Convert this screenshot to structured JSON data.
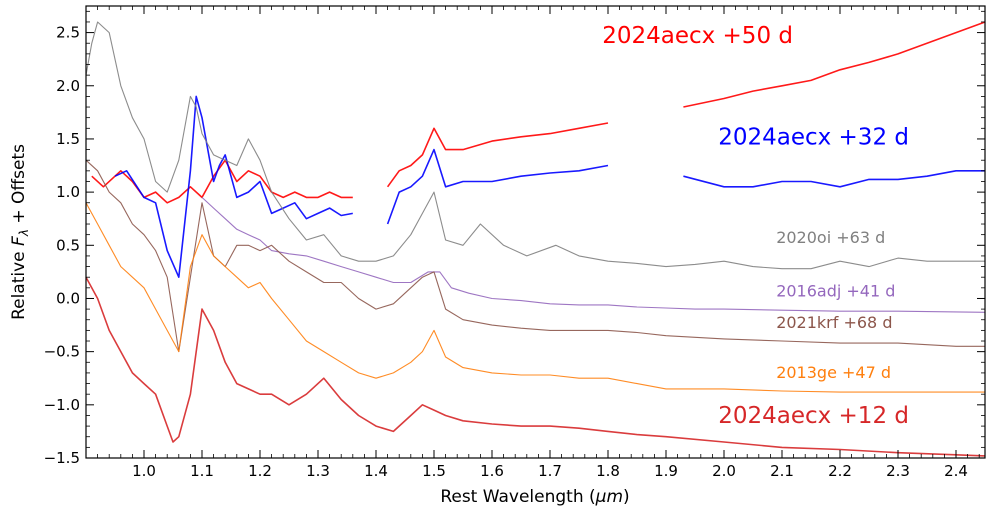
{
  "chart_data": {
    "type": "line",
    "xlabel_prefix": "Rest Wavelength (",
    "xlabel_unit": "μm",
    "xlabel_suffix": ")",
    "ylabel_prefix": "Relative ",
    "ylabel_symbol": "F",
    "ylabel_sub": "λ",
    "ylabel_suffix": " + Offsets",
    "xlim": [
      0.9,
      2.45
    ],
    "ylim": [
      -1.5,
      2.75
    ],
    "x_ticks": [
      "1.0",
      "1.1",
      "1.2",
      "1.3",
      "1.4",
      "1.5",
      "1.6",
      "1.7",
      "1.8",
      "1.9",
      "2.0",
      "2.1",
      "2.2",
      "2.3",
      "2.4"
    ],
    "y_ticks": [
      "−1.5",
      "−1.0",
      "−0.5",
      "0.0",
      "0.5",
      "1.0",
      "1.5",
      "2.0",
      "2.5"
    ],
    "grid": false,
    "series": [
      {
        "name": "2024aecx +50 d",
        "color": "#ff0000",
        "label_size": "large",
        "x": [
          0.91,
          0.93,
          0.96,
          0.98,
          1.0,
          1.02,
          1.04,
          1.06,
          1.08,
          1.1,
          1.12,
          1.14,
          1.16,
          1.18,
          1.2,
          1.22,
          1.24,
          1.26,
          1.28,
          1.3,
          1.32,
          1.34,
          1.36,
          null,
          1.42,
          1.44,
          1.46,
          1.48,
          1.5,
          1.52,
          1.55,
          1.6,
          1.65,
          1.7,
          1.75,
          1.8,
          null,
          1.93,
          2.0,
          2.05,
          2.1,
          2.15,
          2.2,
          2.25,
          2.3,
          2.35,
          2.4,
          2.45
        ],
        "y": [
          1.15,
          1.05,
          1.2,
          1.1,
          0.95,
          1.0,
          0.9,
          0.95,
          1.05,
          0.95,
          1.15,
          1.3,
          1.1,
          1.2,
          1.15,
          1.0,
          0.95,
          1.0,
          0.95,
          0.95,
          1.0,
          0.95,
          0.95,
          null,
          1.05,
          1.2,
          1.25,
          1.35,
          1.6,
          1.4,
          1.4,
          1.48,
          1.52,
          1.55,
          1.6,
          1.65,
          null,
          1.8,
          1.88,
          1.95,
          2.0,
          2.05,
          2.15,
          2.22,
          2.3,
          2.4,
          2.5,
          2.6
        ]
      },
      {
        "name": "2024aecx +32 d",
        "color": "#0000ff",
        "label_size": "large",
        "x": [
          0.95,
          0.97,
          1.0,
          1.02,
          1.04,
          1.06,
          1.08,
          1.09,
          1.1,
          1.12,
          1.13,
          1.14,
          1.16,
          1.18,
          1.2,
          1.22,
          1.24,
          1.26,
          1.28,
          1.3,
          1.32,
          1.34,
          1.36,
          null,
          1.42,
          1.44,
          1.46,
          1.48,
          1.5,
          1.52,
          1.55,
          1.6,
          1.65,
          1.7,
          1.75,
          1.8,
          null,
          1.93,
          2.0,
          2.05,
          2.1,
          2.15,
          2.2,
          2.25,
          2.3,
          2.35,
          2.4,
          2.45
        ],
        "y": [
          1.15,
          1.2,
          0.95,
          0.9,
          0.45,
          0.2,
          1.2,
          1.9,
          1.7,
          1.1,
          1.25,
          1.35,
          0.95,
          1.0,
          1.1,
          0.8,
          0.85,
          0.9,
          0.75,
          0.8,
          0.85,
          0.78,
          0.8,
          null,
          0.7,
          1.0,
          1.05,
          1.15,
          1.4,
          1.05,
          1.1,
          1.1,
          1.15,
          1.18,
          1.2,
          1.25,
          null,
          1.15,
          1.05,
          1.05,
          1.1,
          1.1,
          1.05,
          1.12,
          1.12,
          1.15,
          1.2,
          1.2
        ]
      },
      {
        "name": "2020oi +63 d",
        "color": "#808080",
        "label_size": "small",
        "x": [
          0.9,
          0.91,
          0.92,
          0.94,
          0.96,
          0.98,
          1.0,
          1.02,
          1.04,
          1.06,
          1.08,
          1.09,
          1.1,
          1.12,
          1.14,
          1.16,
          1.18,
          1.2,
          1.22,
          1.25,
          1.28,
          1.31,
          1.34,
          1.37,
          1.4,
          1.43,
          1.46,
          1.48,
          1.5,
          1.52,
          1.55,
          1.58,
          1.62,
          1.66,
          1.71,
          1.75,
          1.8,
          1.85,
          1.9,
          1.95,
          2.0,
          2.05,
          2.1,
          2.15,
          2.2,
          2.25,
          2.3,
          2.35,
          2.4,
          2.45
        ],
        "y": [
          2.1,
          2.4,
          2.6,
          2.5,
          2.0,
          1.7,
          1.5,
          1.1,
          1.0,
          1.3,
          1.9,
          1.8,
          1.55,
          1.35,
          1.3,
          1.25,
          1.5,
          1.3,
          1.0,
          0.75,
          0.55,
          0.6,
          0.4,
          0.35,
          0.35,
          0.4,
          0.6,
          0.8,
          1.0,
          0.55,
          0.5,
          0.7,
          0.5,
          0.4,
          0.5,
          0.4,
          0.35,
          0.33,
          0.3,
          0.32,
          0.35,
          0.3,
          0.28,
          0.28,
          0.35,
          0.3,
          0.38,
          0.35,
          0.35,
          0.35
        ]
      },
      {
        "name": "2016adj +41 d",
        "color": "#9467bd",
        "label_size": "small",
        "x": [
          1.1,
          1.12,
          1.14,
          1.16,
          1.18,
          1.2,
          1.22,
          1.25,
          1.28,
          1.31,
          1.34,
          1.37,
          1.4,
          1.43,
          1.46,
          1.49,
          1.51,
          1.53,
          1.56,
          1.6,
          1.65,
          1.7,
          1.75,
          1.8,
          1.85,
          1.9,
          1.95,
          2.0,
          2.1,
          2.2,
          2.3,
          2.45
        ],
        "y": [
          0.95,
          0.85,
          0.75,
          0.65,
          0.6,
          0.55,
          0.45,
          0.42,
          0.4,
          0.35,
          0.3,
          0.25,
          0.2,
          0.15,
          0.15,
          0.25,
          0.25,
          0.1,
          0.05,
          0.0,
          -0.02,
          -0.05,
          -0.06,
          -0.06,
          -0.08,
          -0.09,
          -0.1,
          -0.1,
          -0.11,
          -0.12,
          -0.12,
          -0.13
        ]
      },
      {
        "name": "2021krf +68 d",
        "color": "#8c564b",
        "label_size": "small",
        "x": [
          0.9,
          0.92,
          0.94,
          0.96,
          0.98,
          1.0,
          1.02,
          1.04,
          1.06,
          1.08,
          1.1,
          1.12,
          1.14,
          1.16,
          1.18,
          1.2,
          1.22,
          1.25,
          1.28,
          1.31,
          1.34,
          1.37,
          1.4,
          1.43,
          1.46,
          1.48,
          1.5,
          1.52,
          1.55,
          1.6,
          1.65,
          1.7,
          1.75,
          1.8,
          1.85,
          1.9,
          2.0,
          2.1,
          2.2,
          2.3,
          2.4,
          2.45
        ],
        "y": [
          1.3,
          1.2,
          1.0,
          0.9,
          0.7,
          0.6,
          0.45,
          0.2,
          -0.5,
          0.2,
          0.9,
          0.4,
          0.3,
          0.5,
          0.5,
          0.45,
          0.5,
          0.35,
          0.25,
          0.15,
          0.15,
          0.0,
          -0.1,
          -0.05,
          0.1,
          0.2,
          0.25,
          -0.1,
          -0.2,
          -0.25,
          -0.28,
          -0.3,
          -0.3,
          -0.3,
          -0.32,
          -0.35,
          -0.38,
          -0.4,
          -0.42,
          -0.42,
          -0.45,
          -0.45
        ]
      },
      {
        "name": "2013ge +47 d",
        "color": "#ff7f0e",
        "label_size": "small",
        "x": [
          0.9,
          0.92,
          0.94,
          0.96,
          0.98,
          1.0,
          1.02,
          1.04,
          1.06,
          1.08,
          1.1,
          1.12,
          1.14,
          1.16,
          1.18,
          1.2,
          1.22,
          1.25,
          1.28,
          1.31,
          1.34,
          1.37,
          1.4,
          1.43,
          1.46,
          1.48,
          1.5,
          1.52,
          1.55,
          1.6,
          1.65,
          1.7,
          1.75,
          1.8,
          1.85,
          1.9,
          2.0,
          2.1,
          2.2,
          2.3,
          2.4,
          2.45
        ],
        "y": [
          0.9,
          0.7,
          0.5,
          0.3,
          0.2,
          0.1,
          -0.1,
          -0.3,
          -0.5,
          0.3,
          0.6,
          0.4,
          0.3,
          0.2,
          0.1,
          0.15,
          0.0,
          -0.2,
          -0.4,
          -0.5,
          -0.6,
          -0.7,
          -0.75,
          -0.7,
          -0.6,
          -0.5,
          -0.3,
          -0.55,
          -0.65,
          -0.7,
          -0.72,
          -0.72,
          -0.75,
          -0.75,
          -0.8,
          -0.85,
          -0.85,
          -0.87,
          -0.88,
          -0.88,
          -0.88,
          -0.88
        ]
      },
      {
        "name": "2024aecx +12 d",
        "color": "#d62728",
        "label_size": "large",
        "x": [
          0.9,
          0.92,
          0.94,
          0.96,
          0.98,
          1.0,
          1.02,
          1.04,
          1.05,
          1.06,
          1.08,
          1.1,
          1.12,
          1.14,
          1.16,
          1.18,
          1.2,
          1.22,
          1.25,
          1.28,
          1.31,
          1.34,
          1.37,
          1.4,
          1.43,
          1.46,
          1.48,
          1.5,
          1.52,
          1.55,
          1.6,
          1.65,
          1.7,
          1.75,
          1.8,
          1.85,
          1.9,
          2.0,
          2.1,
          2.2,
          2.3,
          2.4,
          2.45
        ],
        "y": [
          0.2,
          0.0,
          -0.3,
          -0.5,
          -0.7,
          -0.8,
          -0.9,
          -1.2,
          -1.35,
          -1.3,
          -0.9,
          -0.1,
          -0.3,
          -0.6,
          -0.8,
          -0.85,
          -0.9,
          -0.9,
          -1.0,
          -0.9,
          -0.75,
          -0.95,
          -1.1,
          -1.2,
          -1.25,
          -1.1,
          -1.0,
          -1.05,
          -1.1,
          -1.15,
          -1.18,
          -1.2,
          -1.2,
          -1.22,
          -1.25,
          -1.28,
          -1.3,
          -1.35,
          -1.4,
          -1.42,
          -1.45,
          -1.47,
          -1.48
        ]
      }
    ],
    "annotations": [
      {
        "text": "2024aecx +50 d",
        "color": "#ff0000",
        "x": 1.79,
        "y": 2.4,
        "size": "large"
      },
      {
        "text": "2024aecx +32 d",
        "color": "#0000ff",
        "x": 1.99,
        "y": 1.45,
        "size": "large"
      },
      {
        "text": "2020oi +63 d",
        "color": "#808080",
        "x": 2.09,
        "y": 0.52,
        "size": "small"
      },
      {
        "text": "2016adj +41 d",
        "color": "#9467bd",
        "x": 2.09,
        "y": 0.02,
        "size": "small"
      },
      {
        "text": "2021krf +68 d",
        "color": "#8c564b",
        "x": 2.09,
        "y": -0.28,
        "size": "small"
      },
      {
        "text": "2013ge +47 d",
        "color": "#ff7f0e",
        "x": 2.09,
        "y": -0.75,
        "size": "small"
      },
      {
        "text": "2024aecx +12 d",
        "color": "#d62728",
        "x": 1.99,
        "y": -1.17,
        "size": "large"
      }
    ]
  }
}
